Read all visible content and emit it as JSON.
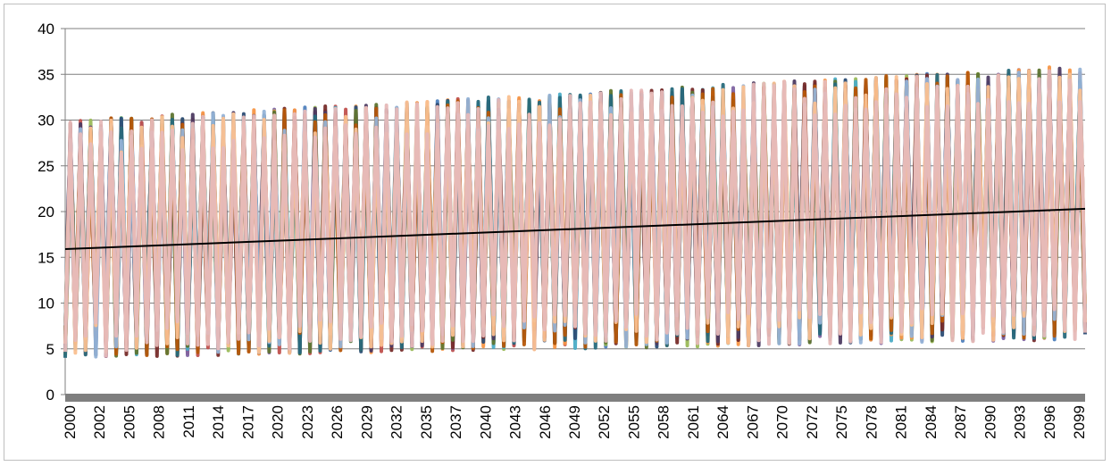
{
  "chart_data": {
    "type": "line",
    "title": "",
    "xlabel": "",
    "ylabel": "",
    "ylim": [
      0,
      40
    ],
    "y_ticks": [
      0,
      5,
      10,
      15,
      20,
      25,
      30,
      35,
      40
    ],
    "xlim": [
      2000,
      2100
    ],
    "x_tick_labels": [
      "2000",
      "2002",
      "2005",
      "2008",
      "2011",
      "2014",
      "2017",
      "2020",
      "2023",
      "2026",
      "2029",
      "2032",
      "2035",
      "2037",
      "2040",
      "2043",
      "2046",
      "2049",
      "2052",
      "2055",
      "2058",
      "2061",
      "2064",
      "2067",
      "2070",
      "2072",
      "2075",
      "2078",
      "2081",
      "2084",
      "2087",
      "2090",
      "2093",
      "2096",
      "2099"
    ],
    "grid": "horizontal",
    "legend": "none",
    "description_series_count": 14,
    "series_colors": [
      "#4f81bd",
      "#c0504d",
      "#9bbb59",
      "#8064a2",
      "#4bacc6",
      "#f79646",
      "#2c4d75",
      "#772c2a",
      "#5f7530",
      "#4d3b62",
      "#276a7c",
      "#b65708",
      "#95b3d7",
      "#fac090",
      "#e6b9b8"
    ],
    "seasonal_range": {
      "summer_peak_start": 28,
      "summer_peak_end": 34,
      "winter_min_start": 6,
      "winter_min_end": 8
    },
    "trendline": {
      "name": "",
      "color": "#000000",
      "start": {
        "x": 2000,
        "y": 15.9
      },
      "end": {
        "x": 2100,
        "y": 20.3
      }
    }
  }
}
